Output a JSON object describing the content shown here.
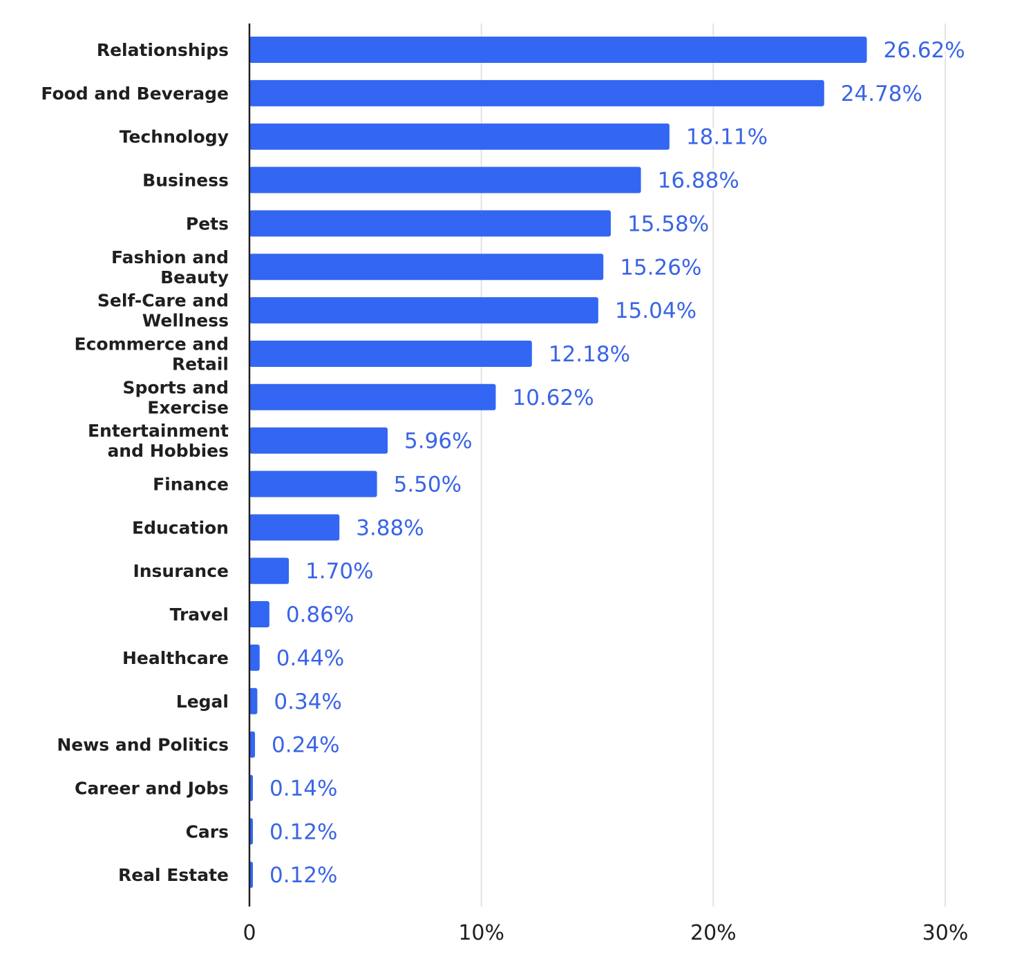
{
  "chart_data": {
    "type": "bar",
    "orientation": "horizontal",
    "categories": [
      "Relationships",
      "Food and Beverage",
      "Technology",
      "Business",
      "Pets",
      "Fashion and Beauty",
      "Self-Care and Wellness",
      "Ecommerce and Retail",
      "Sports and Exercise",
      "Entertainment and Hobbies",
      "Finance",
      "Education",
      "Insurance",
      "Travel",
      "Healthcare",
      "Legal",
      "News and Politics",
      "Career and Jobs",
      "Cars",
      "Real Estate"
    ],
    "category_lines": [
      [
        "Relationships"
      ],
      [
        "Food and Beverage"
      ],
      [
        "Technology"
      ],
      [
        "Business"
      ],
      [
        "Pets"
      ],
      [
        "Fashion and",
        "Beauty"
      ],
      [
        "Self-Care and",
        "Wellness"
      ],
      [
        "Ecommerce and",
        "Retail"
      ],
      [
        "Sports and",
        "Exercise"
      ],
      [
        "Entertainment",
        "and Hobbies"
      ],
      [
        "Finance"
      ],
      [
        "Education"
      ],
      [
        "Insurance"
      ],
      [
        "Travel"
      ],
      [
        "Healthcare"
      ],
      [
        "Legal"
      ],
      [
        "News and Politics"
      ],
      [
        "Career and Jobs"
      ],
      [
        "Cars"
      ],
      [
        "Real Estate"
      ]
    ],
    "values": [
      26.62,
      24.78,
      18.11,
      16.88,
      15.58,
      15.26,
      15.04,
      12.18,
      10.62,
      5.96,
      5.5,
      3.88,
      1.7,
      0.86,
      0.44,
      0.34,
      0.24,
      0.14,
      0.12,
      0.12
    ],
    "value_labels": [
      "26.62%",
      "24.78%",
      "18.11%",
      "16.88%",
      "15.58%",
      "15.26%",
      "15.04%",
      "12.18%",
      "10.62%",
      "5.96%",
      "5.50%",
      "3.88%",
      "1.70%",
      "0.86%",
      "0.44%",
      "0.34%",
      "0.24%",
      "0.14%",
      "0.12%",
      "0.12%"
    ],
    "xlim": [
      0,
      30
    ],
    "x_ticks": [
      0,
      10,
      20,
      30
    ],
    "x_tick_labels": [
      "0",
      "10%",
      "20%",
      "30%"
    ],
    "grid": "vertical",
    "legend": "none",
    "bar_color": "#3366f2",
    "value_label_color": "#3a64e6",
    "text_color": "#1f1f1f",
    "grid_color": "#e3e3e3",
    "axis_color": "#1f1f1f"
  }
}
